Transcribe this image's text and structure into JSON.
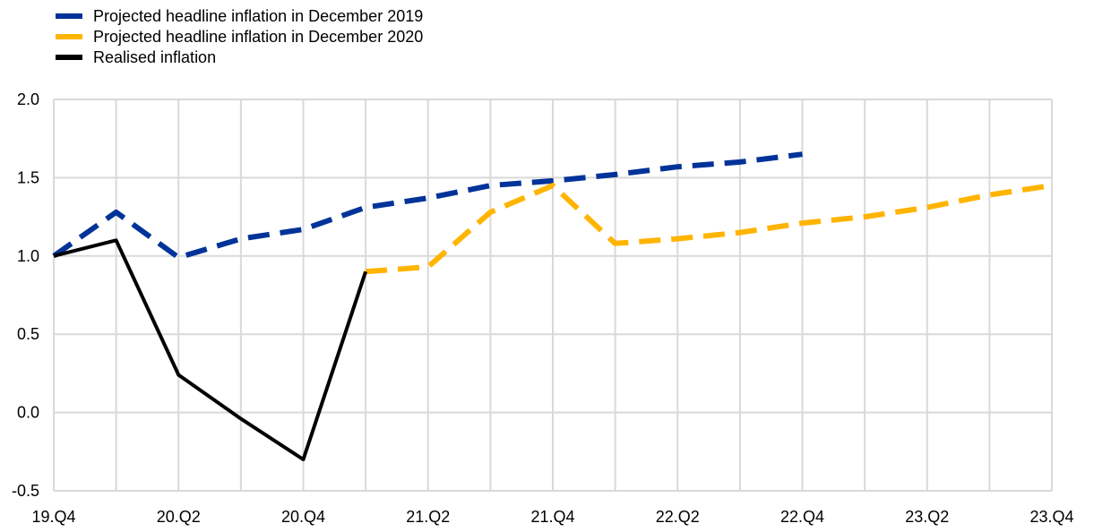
{
  "chart_data": {
    "type": "line",
    "title": "",
    "xlabel": "",
    "ylabel": "",
    "x": [
      "19.Q4",
      "20.Q1",
      "20.Q2",
      "20.Q3",
      "20.Q4",
      "21.Q1",
      "21.Q2",
      "21.Q3",
      "21.Q4",
      "22.Q1",
      "22.Q2",
      "22.Q3",
      "22.Q4",
      "23.Q1",
      "23.Q2",
      "23.Q3",
      "23.Q4"
    ],
    "x_tick_labels": [
      "19.Q4",
      "20.Q2",
      "20.Q4",
      "21.Q2",
      "21.Q4",
      "22.Q2",
      "22.Q4",
      "23.Q2",
      "23.Q4"
    ],
    "y_ticks": [
      "2.0",
      "1.5",
      "1.0",
      "0.5",
      "0.0",
      "-0.5"
    ],
    "ylim": [
      -0.5,
      2.0
    ],
    "grid": "vertical and horizontal",
    "legend_position": "top-left",
    "series": [
      {
        "name": "Projected headline inflation in December 2019",
        "color": "#003399",
        "style": "dashed",
        "values": [
          1.0,
          1.28,
          0.99,
          1.11,
          1.17,
          1.31,
          1.37,
          1.45,
          1.48,
          1.52,
          1.57,
          1.6,
          1.65,
          null,
          null,
          null,
          null
        ]
      },
      {
        "name": "Projected headline inflation in December 2020",
        "color": "#FFB400",
        "style": "dashed",
        "values": [
          null,
          null,
          null,
          null,
          null,
          0.9,
          0.93,
          1.28,
          1.45,
          1.08,
          1.11,
          1.15,
          1.21,
          1.25,
          1.31,
          1.39,
          1.45
        ]
      },
      {
        "name": "Realised inflation",
        "color": "#000000",
        "style": "solid",
        "values": [
          1.0,
          1.1,
          0.24,
          -0.04,
          -0.3,
          0.9,
          null,
          null,
          null,
          null,
          null,
          null,
          null,
          null,
          null,
          null,
          null
        ]
      }
    ]
  }
}
